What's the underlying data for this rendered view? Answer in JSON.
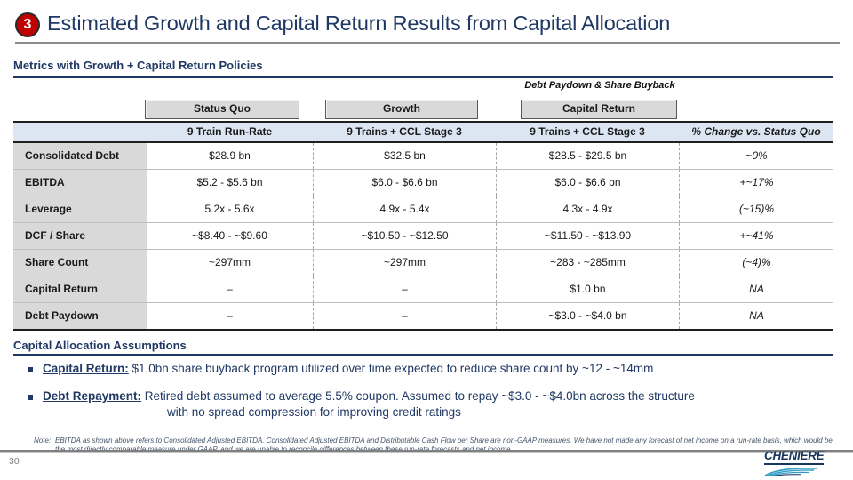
{
  "slide": {
    "badge": "3",
    "title": "Estimated Growth and Capital Return Results from Capital Allocation",
    "page_number": "30",
    "logo_text": "CHENIERE"
  },
  "colors": {
    "navy": "#1F3864",
    "badge_red": "#C00000",
    "header_blue": "#DCE6F2",
    "label_gray": "#D9D9D9",
    "logo_teal": "#2E9BC5"
  },
  "metrics_section": {
    "title": "Metrics with Growth + Capital Return Policies",
    "annotation": "Debt Paydown & Share Buyback",
    "scenarios": [
      "Status Quo",
      "Growth",
      "Capital Return"
    ],
    "columns": [
      "",
      "9 Train Run-Rate",
      "9 Trains + CCL Stage 3",
      "9 Trains + CCL Stage 3",
      "% Change vs. Status Quo"
    ],
    "rows": [
      {
        "label": "Consolidated Debt",
        "values": [
          "$28.9 bn",
          "$32.5 bn",
          "$28.5 - $29.5 bn",
          "~0%"
        ]
      },
      {
        "label": "EBITDA",
        "values": [
          "$5.2 - $5.6 bn",
          "$6.0 - $6.6 bn",
          "$6.0 - $6.6 bn",
          "+~17%"
        ]
      },
      {
        "label": "Leverage",
        "values": [
          "5.2x - 5.6x",
          "4.9x - 5.4x",
          "4.3x - 4.9x",
          "(~15)%"
        ]
      },
      {
        "label": "DCF / Share",
        "values": [
          "~$8.40 - ~$9.60",
          "~$10.50 - ~$12.50",
          "~$11.50 - ~$13.90",
          "+~41%"
        ]
      },
      {
        "label": "Share Count",
        "values": [
          "~297mm",
          "~297mm",
          "~283 - ~285mm",
          "(~4)%"
        ]
      },
      {
        "label": "Capital Return",
        "values": [
          "–",
          "–",
          "$1.0 bn",
          "NA"
        ]
      },
      {
        "label": "Debt Paydown",
        "values": [
          "–",
          "–",
          "~$3.0 - ~$4.0 bn",
          "NA"
        ]
      }
    ]
  },
  "assumptions_section": {
    "title": "Capital Allocation Assumptions",
    "bullets": [
      {
        "label": "Capital Return:",
        "text": " $1.0bn share buyback program utilized over time expected to reduce share count by ~12 - ~14mm",
        "text2": ""
      },
      {
        "label": "Debt Repayment:",
        "text": " Retired debt assumed to average 5.5% coupon. Assumed to repay ~$3.0 - ~$4.0bn across the structure",
        "text2": "with no spread compression for improving credit ratings"
      }
    ]
  },
  "note": {
    "prefix": "Note:",
    "text": "EBITDA as shown above refers to Consolidated Adjusted EBITDA. Consolidated Adjusted EBITDA and Distributable Cash Flow per Share are non-GAAP measures. We have not made any forecast of net income on a run-rate basis, which would be the most directly comparable measure under GAAP, and we are unable to reconcile differences between these run-rate forecasts and net income."
  }
}
